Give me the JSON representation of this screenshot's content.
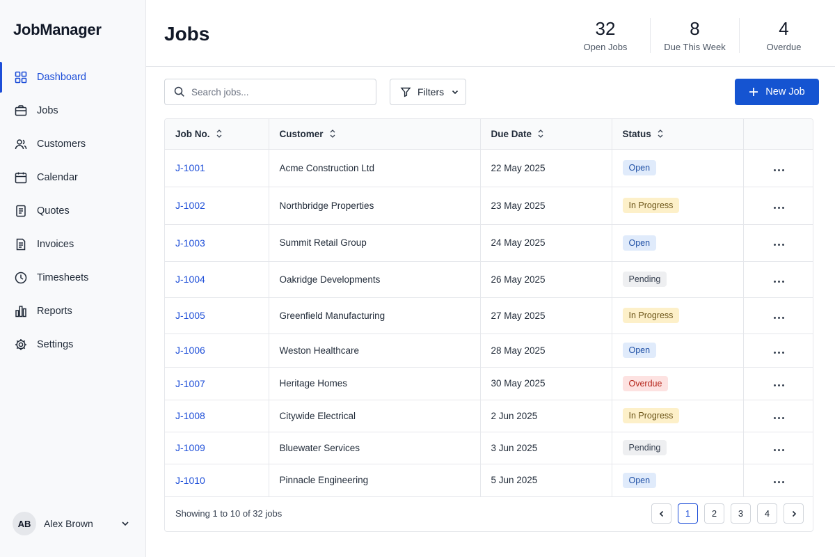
{
  "app": {
    "name": "JobManager"
  },
  "sidebar": {
    "items": [
      {
        "label": "Dashboard",
        "icon": "dashboard-icon",
        "active": true
      },
      {
        "label": "Jobs",
        "icon": "briefcase-icon"
      },
      {
        "label": "Customers",
        "icon": "users-icon"
      },
      {
        "label": "Calendar",
        "icon": "calendar-icon"
      },
      {
        "label": "Quotes",
        "icon": "quote-document-icon"
      },
      {
        "label": "Invoices",
        "icon": "invoice-document-icon"
      },
      {
        "label": "Timesheets",
        "icon": "clock-icon"
      },
      {
        "label": "Reports",
        "icon": "bar-chart-icon"
      },
      {
        "label": "Settings",
        "icon": "gear-icon"
      }
    ],
    "user": {
      "initials": "AB",
      "name": "Alex Brown"
    }
  },
  "header": {
    "title": "Jobs",
    "stats": [
      {
        "value": "32",
        "label": "Open Jobs"
      },
      {
        "value": "8",
        "label": "Due This Week"
      },
      {
        "value": "4",
        "label": "Overdue"
      }
    ]
  },
  "toolbar": {
    "search_placeholder": "Search jobs...",
    "filters_label": "Filters",
    "new_job_label": "New Job"
  },
  "table": {
    "columns": [
      "Job No.",
      "Customer",
      "Due Date",
      "Status"
    ],
    "rows": [
      {
        "job_no": "J-1001",
        "customer": "Acme Construction Ltd",
        "due": "22 May 2025",
        "status": "Open",
        "status_type": "open"
      },
      {
        "job_no": "J-1002",
        "customer": "Northbridge Properties",
        "due": "23 May 2025",
        "status": "In Progress",
        "status_type": "progress"
      },
      {
        "job_no": "J-1003",
        "customer": "Summit Retail Group",
        "due": "24 May 2025",
        "status": "Open",
        "status_type": "open"
      },
      {
        "job_no": "J-1004",
        "customer": "Oakridge Developments",
        "due": "26 May 2025",
        "status": "Pending",
        "status_type": "pending"
      },
      {
        "job_no": "J-1005",
        "customer": "Greenfield Manufacturing",
        "due": "27 May 2025",
        "status": "In Progress",
        "status_type": "progress"
      },
      {
        "job_no": "J-1006",
        "customer": "Weston Healthcare",
        "due": "28 May 2025",
        "status": "Open",
        "status_type": "open"
      },
      {
        "job_no": "J-1007",
        "customer": "Heritage Homes",
        "due": "30 May 2025",
        "status": "Overdue",
        "status_type": "overdue"
      },
      {
        "job_no": "J-1008",
        "customer": "Citywide Electrical",
        "due": "2 Jun 2025",
        "status": "In Progress",
        "status_type": "progress"
      },
      {
        "job_no": "J-1009",
        "customer": "Bluewater Services",
        "due": "3 Jun 2025",
        "status": "Pending",
        "status_type": "pending"
      },
      {
        "job_no": "J-1010",
        "customer": "Pinnacle Engineering",
        "due": "5 Jun 2025",
        "status": "Open",
        "status_type": "open"
      }
    ],
    "footer": {
      "showing": "Showing 1 to 10 of 32 jobs",
      "pages": [
        "1",
        "2",
        "3",
        "4"
      ],
      "current_page": "1"
    }
  },
  "colors": {
    "accent": "#1d4ed8",
    "primary_button": "#1554d1",
    "status_open_bg": "#e0ebfb",
    "status_progress_bg": "#fdf0c9",
    "status_pending_bg": "#eeeff1",
    "status_overdue_bg": "#fde2e1"
  }
}
